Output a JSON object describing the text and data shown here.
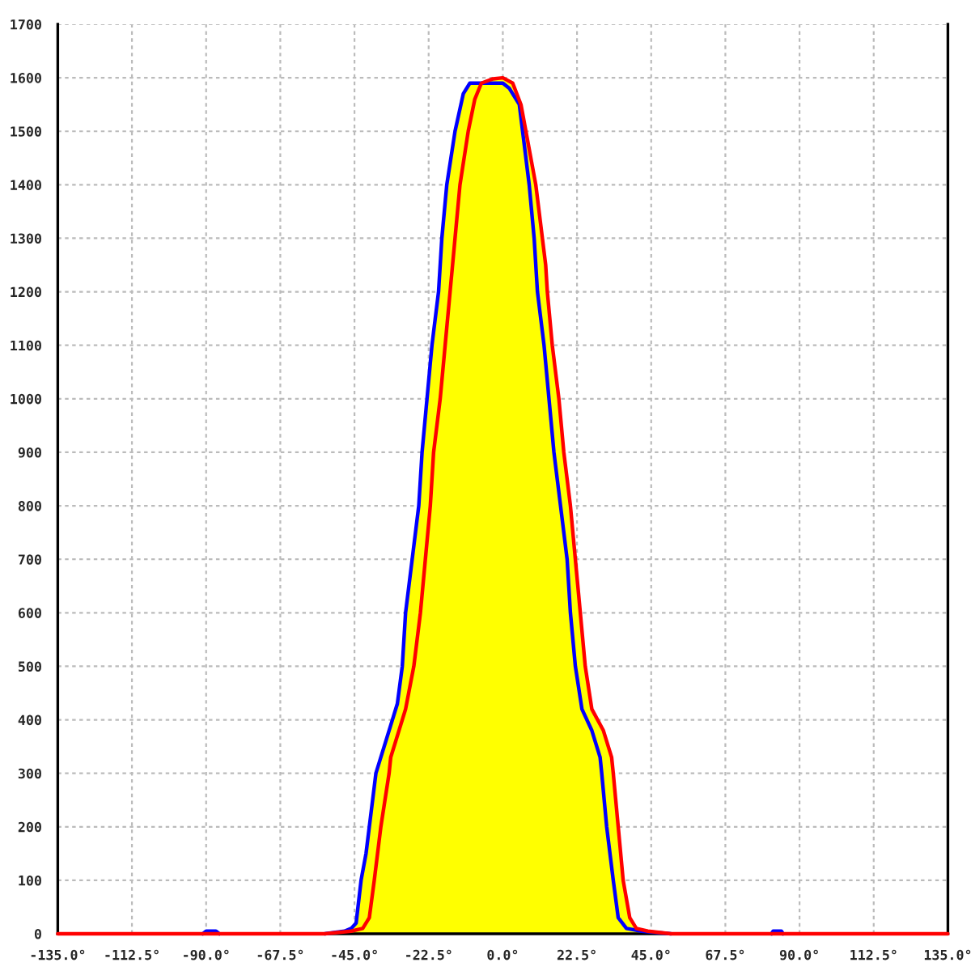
{
  "chart_data": {
    "type": "area",
    "xlim": [
      -135,
      135
    ],
    "ylim": [
      0,
      1700
    ],
    "xticks": [
      {
        "value": -135,
        "label": "-135.0°"
      },
      {
        "value": -112.5,
        "label": "-112.5°"
      },
      {
        "value": -90,
        "label": "-90.0°"
      },
      {
        "value": -67.5,
        "label": "-67.5°"
      },
      {
        "value": -45,
        "label": "-45.0°"
      },
      {
        "value": -22.5,
        "label": "-22.5°"
      },
      {
        "value": 0,
        "label": "0.0°"
      },
      {
        "value": 22.5,
        "label": "22.5°"
      },
      {
        "value": 45,
        "label": "45.0°"
      },
      {
        "value": 67.5,
        "label": "67.5°"
      },
      {
        "value": 90,
        "label": "90.0°"
      },
      {
        "value": 112.5,
        "label": "112.5°"
      },
      {
        "value": 135,
        "label": "135.0°"
      }
    ],
    "yticks": [
      0,
      100,
      200,
      300,
      400,
      500,
      600,
      700,
      800,
      900,
      1000,
      1100,
      1200,
      1300,
      1400,
      1500,
      1600,
      1700
    ],
    "grid": true,
    "line_style": "solid",
    "series": [
      {
        "type": "line",
        "color": "#0000ff",
        "x": [
          -91,
          -90,
          -87,
          -86,
          -70,
          -54,
          -48,
          -46,
          -44.5,
          -43,
          -41.5,
          -40.5,
          -38.5,
          -37.5,
          -36,
          -33.5,
          -32,
          -30.5,
          -29.5,
          -27.5,
          -25.5,
          -24.5,
          -23,
          -21.5,
          -19.5,
          -18.5,
          -17,
          -14.5,
          -12,
          -10,
          -3,
          0,
          2,
          5,
          6,
          8,
          9.5,
          10.5,
          12.5,
          14,
          15.5,
          17.5,
          19.5,
          20.5,
          22,
          24,
          27,
          29.5,
          30,
          31.5,
          33.5,
          35,
          37.5,
          42,
          51,
          70,
          81.5,
          82,
          84.5,
          85
        ],
        "values": [
          0,
          5,
          5,
          0,
          null,
          0,
          5,
          10,
          20,
          100,
          150,
          200,
          300,
          320,
          350,
          400,
          430,
          500,
          600,
          700,
          800,
          900,
          1000,
          1100,
          1200,
          1300,
          1400,
          1500,
          1570,
          1590,
          1590,
          1590,
          1580,
          1550,
          1500,
          1400,
          1300,
          1200,
          1100,
          1000,
          900,
          800,
          700,
          600,
          500,
          420,
          380,
          330,
          300,
          200,
          100,
          30,
          10,
          5,
          0,
          null,
          0,
          5,
          5,
          0
        ]
      },
      {
        "type": "line",
        "color": "#ff0000",
        "x": [
          -135,
          -54,
          -46,
          -42.5,
          -40.5,
          -39,
          -37,
          -34.5,
          -34,
          -31.5,
          -29.5,
          -27,
          -25,
          -23.5,
          -22,
          -21,
          -19,
          -17.5,
          -16,
          -14.5,
          -13,
          -10.5,
          -8.5,
          -6.5,
          -3,
          0,
          3,
          5.5,
          7,
          10,
          12,
          13,
          13.5,
          15,
          17,
          18.5,
          20.5,
          22,
          23.5,
          25,
          27,
          30.5,
          33,
          33.5,
          35,
          36.5,
          38.5,
          40.5,
          44,
          51,
          135
        ],
        "values": [
          0,
          0,
          5,
          10,
          30,
          100,
          200,
          300,
          330,
          380,
          420,
          500,
          600,
          700,
          800,
          900,
          1000,
          1100,
          1200,
          1300,
          1400,
          1500,
          1560,
          1590,
          1598,
          1600,
          1590,
          1550,
          1500,
          1400,
          1300,
          1250,
          1200,
          1100,
          1000,
          900,
          800,
          700,
          600,
          500,
          420,
          380,
          330,
          300,
          200,
          100,
          30,
          10,
          5,
          0,
          0
        ]
      },
      {
        "color": "#ffff00",
        "x": [
          -54,
          -48,
          -46,
          -44.5,
          -43,
          -41.5,
          -40.5,
          -38.5,
          -37.5,
          -36,
          -33.5,
          -32,
          -30.5,
          -29.5,
          -27.5,
          -25.5,
          -24.5,
          -23,
          -21.5,
          -19.5,
          -18.5,
          -17,
          -14.5,
          -12,
          -10,
          -6.5,
          -3,
          0,
          3,
          5.5,
          7,
          10,
          12,
          13,
          13.5,
          15,
          17,
          18.5,
          20.5,
          22,
          23.5,
          25,
          27,
          30.5,
          33,
          33.5,
          35,
          36.5,
          38.5,
          40.5,
          44,
          51
        ],
        "values": [
          0,
          5,
          10,
          20,
          100,
          150,
          200,
          300,
          320,
          350,
          400,
          430,
          500,
          600,
          700,
          800,
          900,
          1000,
          1100,
          1200,
          1300,
          1400,
          1500,
          1570,
          1590,
          1590,
          1598,
          1600,
          1590,
          1550,
          1500,
          1400,
          1300,
          1250,
          1200,
          1100,
          1000,
          900,
          800,
          700,
          600,
          500,
          420,
          380,
          330,
          300,
          200,
          100,
          30,
          10,
          5,
          0
        ]
      }
    ]
  }
}
